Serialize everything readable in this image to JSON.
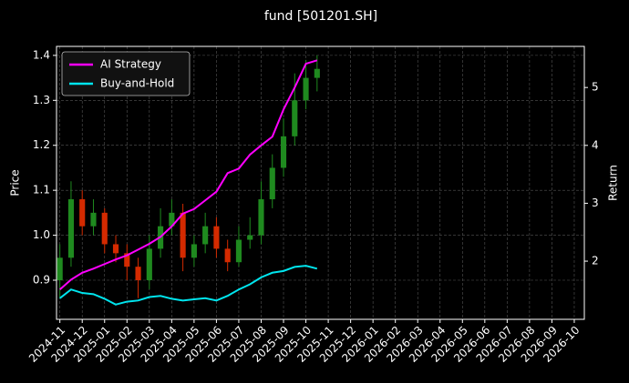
{
  "chart_data": {
    "type": "candlestick",
    "title": "fund [501201.SH]",
    "ylabel": "Price",
    "y2label": "Return",
    "x": [
      0,
      0.5,
      1,
      1.5,
      2,
      2.5,
      3,
      3.5,
      4,
      4.5,
      5,
      5.5,
      6,
      6.5,
      7,
      7.5,
      8,
      8.5,
      9,
      9.5,
      10,
      10.5,
      11,
      11.5
    ],
    "open": [
      0.9,
      0.95,
      1.08,
      1.02,
      1.05,
      0.98,
      0.96,
      0.93,
      0.9,
      0.97,
      1.02,
      1.05,
      0.95,
      0.98,
      1.02,
      0.97,
      0.94,
      0.99,
      1.0,
      1.08,
      1.15,
      1.22,
      1.3,
      1.35
    ],
    "close": [
      0.95,
      1.08,
      1.02,
      1.05,
      0.98,
      0.96,
      0.93,
      0.9,
      0.97,
      1.02,
      1.05,
      0.95,
      0.98,
      1.02,
      0.97,
      0.94,
      0.99,
      1.0,
      1.08,
      1.15,
      1.22,
      1.3,
      1.35,
      1.37
    ],
    "high": [
      0.98,
      1.12,
      1.1,
      1.08,
      1.06,
      1.0,
      0.98,
      0.95,
      1.0,
      1.06,
      1.08,
      1.07,
      1.0,
      1.05,
      1.04,
      0.99,
      1.02,
      1.04,
      1.12,
      1.18,
      1.26,
      1.36,
      1.39,
      1.4
    ],
    "low": [
      0.86,
      0.93,
      1.0,
      1.0,
      0.96,
      0.94,
      0.9,
      0.86,
      0.88,
      0.95,
      1.0,
      0.92,
      0.93,
      0.96,
      0.95,
      0.92,
      0.93,
      0.97,
      0.98,
      1.06,
      1.13,
      1.2,
      1.28,
      1.32
    ],
    "up_color": "#1f8a1f",
    "down_color": "#d42a00",
    "series": [
      {
        "name": "AI Strategy",
        "color": "#ff00ff",
        "axis": "y2",
        "values": [
          1.51,
          1.68,
          1.8,
          1.87,
          1.95,
          2.03,
          2.1,
          2.2,
          2.3,
          2.42,
          2.6,
          2.82,
          2.9,
          3.05,
          3.2,
          3.52,
          3.6,
          3.84,
          4.0,
          4.15,
          4.62,
          5.0,
          5.41,
          5.47
        ]
      },
      {
        "name": "Buy-and-Hold",
        "color": "#00e5ee",
        "axis": "y2",
        "values": [
          1.36,
          1.51,
          1.45,
          1.43,
          1.35,
          1.25,
          1.3,
          1.32,
          1.38,
          1.4,
          1.35,
          1.32,
          1.34,
          1.36,
          1.32,
          1.4,
          1.51,
          1.6,
          1.72,
          1.8,
          1.83,
          1.9,
          1.92,
          1.87
        ]
      }
    ],
    "xlim": [
      -0.15,
      23.45
    ],
    "xticks": [
      {
        "value": 0,
        "label": "2024-11"
      },
      {
        "value": 1,
        "label": "2024-12"
      },
      {
        "value": 2,
        "label": "2025-01"
      },
      {
        "value": 3,
        "label": "2025-02"
      },
      {
        "value": 4,
        "label": "2025-03"
      },
      {
        "value": 5,
        "label": "2025-04"
      },
      {
        "value": 6,
        "label": "2025-05"
      },
      {
        "value": 7,
        "label": "2025-06"
      },
      {
        "value": 8,
        "label": "2025-07"
      },
      {
        "value": 9,
        "label": "2025-08"
      },
      {
        "value": 10,
        "label": "2025-09"
      },
      {
        "value": 11,
        "label": "2025-10"
      },
      {
        "value": 12,
        "label": "2025-11"
      },
      {
        "value": 13,
        "label": "2025-12"
      },
      {
        "value": 14,
        "label": "2026-01"
      },
      {
        "value": 15,
        "label": "2026-02"
      },
      {
        "value": 16,
        "label": "2026-03"
      },
      {
        "value": 17,
        "label": "2026-04"
      },
      {
        "value": 18,
        "label": "2026-05"
      },
      {
        "value": 19,
        "label": "2026-06"
      },
      {
        "value": 20,
        "label": "2026-07"
      },
      {
        "value": 21,
        "label": "2026-08"
      },
      {
        "value": 22,
        "label": "2026-09"
      },
      {
        "value": 23,
        "label": "2026-10"
      }
    ],
    "ylim": [
      0.813,
      1.42
    ],
    "yticks": [
      {
        "value": 0.9,
        "label": "0.9"
      },
      {
        "value": 1.0,
        "label": "1.0"
      },
      {
        "value": 1.1,
        "label": "1.1"
      },
      {
        "value": 1.2,
        "label": "1.2"
      },
      {
        "value": 1.3,
        "label": "1.3"
      },
      {
        "value": 1.4,
        "label": "1.4"
      }
    ],
    "y2lim": [
      0.995,
      5.71
    ],
    "y2ticks": [
      2,
      3,
      4,
      5
    ],
    "grid": true,
    "legend": "upper left"
  }
}
